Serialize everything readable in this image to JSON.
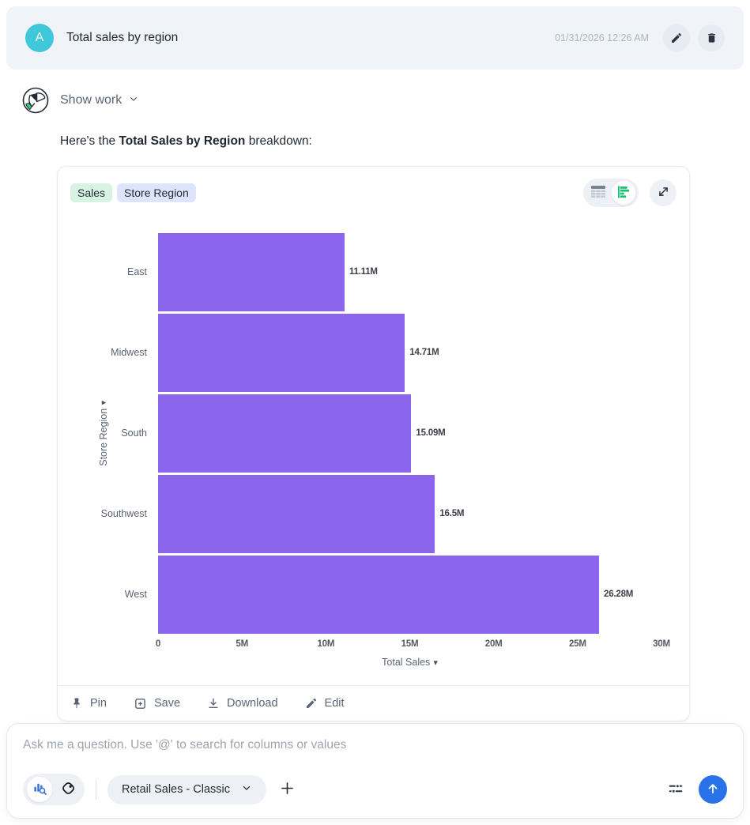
{
  "header": {
    "avatar_letter": "A",
    "title": "Total sales by region",
    "timestamp": "01/31/2026 12:26 AM"
  },
  "assistant": {
    "show_work_label": "Show work",
    "message_prefix": "Here's the ",
    "message_bold": "Total Sales by Region",
    "message_suffix": " breakdown:"
  },
  "chart_card": {
    "tags": [
      {
        "label": "Sales",
        "type": "measure"
      },
      {
        "label": "Store Region",
        "type": "attribute"
      }
    ],
    "toolbar": {
      "pin_label": "Pin",
      "save_label": "Save",
      "download_label": "Download",
      "edit_label": "Edit"
    }
  },
  "chart_data": {
    "type": "bar",
    "orientation": "horizontal",
    "title": "",
    "categories": [
      "East",
      "Midwest",
      "South",
      "Southwest",
      "West"
    ],
    "values": [
      11110000,
      14710000,
      15090000,
      16500000,
      26280000
    ],
    "value_labels": [
      "11.11M",
      "14.71M",
      "15.09M",
      "16.5M",
      "26.28M"
    ],
    "xlabel": "Total Sales",
    "ylabel": "Store Region",
    "xlim": [
      0,
      30000000
    ],
    "x_ticks": [
      "0",
      "5M",
      "10M",
      "15M",
      "20M",
      "25M",
      "30M"
    ],
    "bar_color": "#8B66EC",
    "grid": false,
    "legend": false
  },
  "composer": {
    "placeholder": "Ask me a question. Use '@' to search for columns or values",
    "dataset_label": "Retail Sales - Classic"
  },
  "colors": {
    "accent_blue": "#2A72E8",
    "bar_purple": "#8B66EC",
    "avatar_teal": "#3FC8D9",
    "tag_green": "#D8F3E4",
    "tag_lavender": "#DEE4FB",
    "viz_icon_green": "#1FBE75"
  }
}
